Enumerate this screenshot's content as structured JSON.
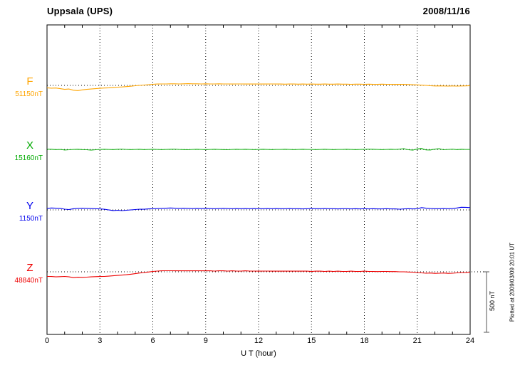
{
  "header": {
    "station": "Uppsala (UPS)",
    "date": "2008/11/16"
  },
  "xaxis": {
    "label": "U T (hour)"
  },
  "scale_bar": {
    "label": "500 nT"
  },
  "footer_note": "Plotted at 2009/03/09 20:01 UT",
  "chart_data": {
    "type": "line",
    "title": "Uppsala (UPS) magnetogram 2008/11/16",
    "xlabel": "U T (hour)",
    "xlim": [
      0,
      24
    ],
    "xticks": [
      0,
      3,
      6,
      9,
      12,
      15,
      18,
      21,
      24
    ],
    "x_start": 0,
    "x_step": 0.25,
    "values_unit": "nT offset from component baseline",
    "grid": "dotted vertical lines every 3 hours; dotted horizontal baseline per component",
    "legend": "none",
    "scale": {
      "nT": 500,
      "label": "500 nT"
    },
    "series": [
      {
        "name": "F",
        "baseline_label": "51150nT",
        "baseline_nT": 51150,
        "color": "#FFA500",
        "values": [
          -20,
          -23,
          -22,
          -27,
          -33,
          -30,
          -40,
          -43,
          -37,
          -33,
          -30,
          -27,
          -24,
          -22,
          -20,
          -17,
          -15,
          -13,
          -10,
          -7,
          -3,
          0,
          3,
          6,
          9,
          11,
          12,
          12,
          13,
          13,
          12,
          13,
          14,
          13,
          13,
          12,
          13,
          12,
          12,
          13,
          12,
          12,
          11,
          12,
          12,
          11,
          12,
          11,
          12,
          11,
          11,
          12,
          11,
          11,
          10,
          11,
          11,
          10,
          11,
          10,
          11,
          10,
          10,
          11,
          10,
          10,
          11,
          10,
          10,
          9,
          10,
          10,
          9,
          10,
          9,
          9,
          10,
          9,
          9,
          8,
          9,
          8,
          7,
          6,
          4,
          2,
          0,
          -3,
          -5,
          -4,
          -5,
          -6,
          -5,
          -6,
          -5,
          -4,
          -3
        ]
      },
      {
        "name": "X",
        "baseline_label": "15160nT",
        "baseline_nT": 15160,
        "color": "#00AA00",
        "values": [
          3,
          2,
          -2,
          0,
          -5,
          -3,
          0,
          2,
          -2,
          -3,
          -6,
          -3,
          0,
          2,
          0,
          -2,
          2,
          3,
          0,
          -2,
          0,
          2,
          -2,
          0,
          2,
          0,
          -2,
          0,
          2,
          3,
          0,
          -2,
          -3,
          0,
          2,
          0,
          -2,
          0,
          2,
          0,
          -2,
          -3,
          0,
          2,
          0,
          2,
          0,
          -2,
          0,
          2,
          0,
          -2,
          0,
          0,
          2,
          0,
          -2,
          0,
          2,
          0,
          0,
          -2,
          0,
          2,
          0,
          -2,
          0,
          0,
          2,
          0,
          -2,
          0,
          2,
          3,
          2,
          0,
          -2,
          0,
          2,
          0,
          3,
          6,
          -3,
          -6,
          4,
          7,
          -4,
          -5,
          3,
          6,
          -3,
          0,
          3,
          -2,
          2,
          0,
          0
        ]
      },
      {
        "name": "Y",
        "baseline_label": "1150nT",
        "baseline_nT": 1150,
        "color": "#0000EE",
        "values": [
          13,
          16,
          14,
          13,
          6,
          3,
          10,
          13,
          14,
          13,
          11,
          10,
          8,
          5,
          0,
          -5,
          -3,
          -6,
          -3,
          0,
          3,
          6,
          5,
          8,
          10,
          11,
          13,
          14,
          16,
          14,
          13,
          14,
          13,
          11,
          13,
          11,
          13,
          11,
          10,
          11,
          13,
          11,
          10,
          11,
          10,
          11,
          10,
          11,
          10,
          10,
          11,
          10,
          11,
          10,
          10,
          11,
          10,
          10,
          8,
          10,
          11,
          10,
          10,
          11,
          10,
          10,
          8,
          10,
          10,
          8,
          10,
          8,
          10,
          8,
          10,
          8,
          8,
          10,
          8,
          8,
          6,
          8,
          10,
          8,
          10,
          19,
          14,
          11,
          10,
          10,
          11,
          10,
          11,
          16,
          22,
          21,
          19
        ]
      },
      {
        "name": "Z",
        "baseline_label": "48840nT",
        "baseline_nT": 48840,
        "color": "#EE0000",
        "values": [
          -38,
          -39,
          -42,
          -40,
          -38,
          -42,
          -48,
          -45,
          -46,
          -44,
          -42,
          -40,
          -39,
          -38,
          -36,
          -33,
          -30,
          -27,
          -24,
          -20,
          -15,
          -10,
          -6,
          -2,
          3,
          6,
          8,
          9,
          9,
          8,
          9,
          8,
          9,
          8,
          8,
          9,
          8,
          8,
          6,
          8,
          8,
          6,
          8,
          6,
          6,
          8,
          6,
          6,
          5,
          6,
          6,
          5,
          6,
          5,
          6,
          5,
          5,
          6,
          5,
          5,
          3,
          5,
          5,
          3,
          5,
          3,
          5,
          3,
          3,
          5,
          3,
          3,
          5,
          3,
          3,
          2,
          3,
          3,
          2,
          2,
          0,
          0,
          -2,
          -3,
          -6,
          -9,
          -12,
          -10,
          -13,
          -12,
          -10,
          -13,
          -12,
          -9,
          -6,
          -5,
          -3
        ]
      }
    ]
  }
}
